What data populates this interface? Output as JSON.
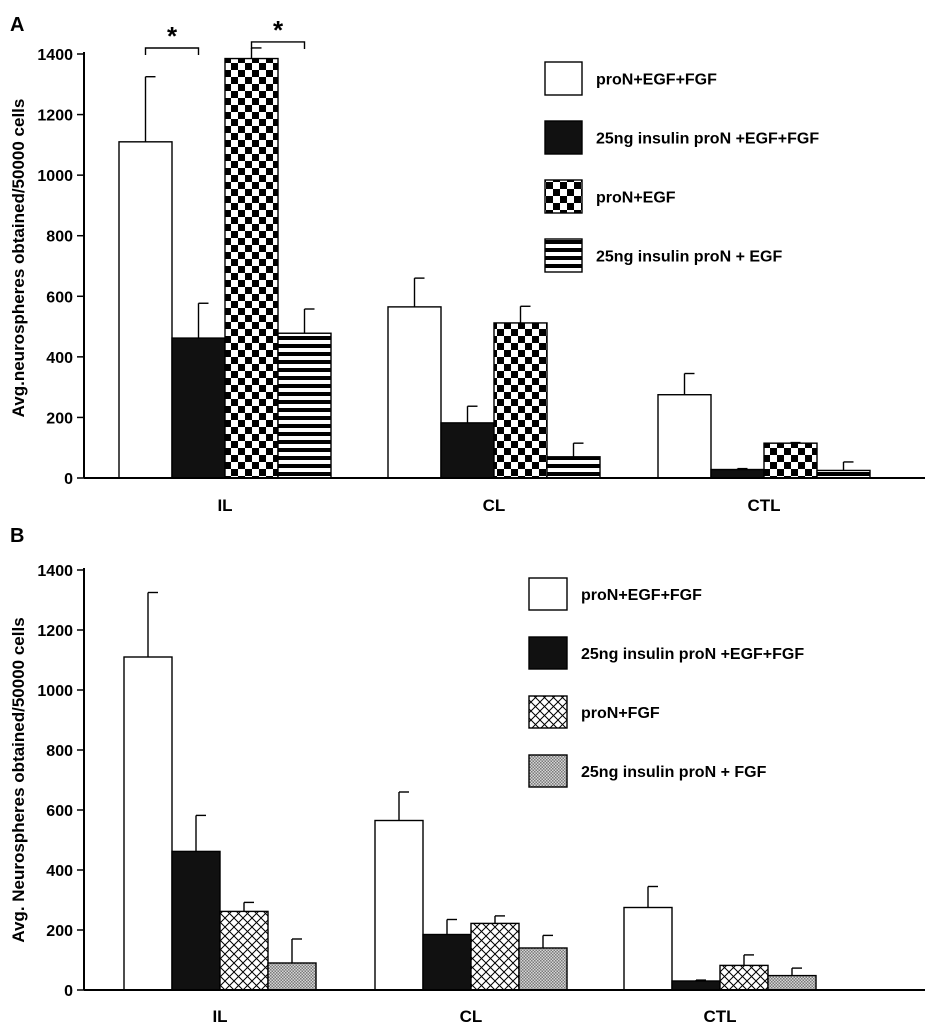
{
  "chart_data": [
    {
      "type": "bar",
      "panel_label": "A",
      "ylabel": "Avg.neurospheres obtained/50000 cells",
      "xlabel": "",
      "ylim": [
        0,
        1400
      ],
      "yticks": [
        "0",
        "200",
        "400",
        "600",
        "800",
        "1000",
        "1200",
        "1400"
      ],
      "categories": [
        "IL",
        "CL",
        "CTL"
      ],
      "series": [
        {
          "name": "proN+EGF+FGF",
          "pattern": "white",
          "values": [
            1110,
            565,
            275
          ],
          "errors": [
            215,
            95,
            70
          ]
        },
        {
          "name": "25ng insulin proN +EGF+FGF",
          "pattern": "black",
          "values": [
            462,
            182,
            28
          ],
          "errors": [
            115,
            55,
            3
          ]
        },
        {
          "name": "proN+EGF",
          "pattern": "checker",
          "values": [
            1385,
            512,
            115
          ],
          "errors": [
            35,
            55,
            2
          ]
        },
        {
          "name": "25ng insulin proN + EGF",
          "pattern": "hstripes",
          "values": [
            478,
            70,
            25
          ],
          "errors": [
            80,
            45,
            28
          ]
        }
      ],
      "annotations": [
        {
          "text": "*",
          "from_series": 0,
          "to_series": 1,
          "category": "IL"
        },
        {
          "text": "*",
          "from_series": 2,
          "to_series": 3,
          "category": "IL"
        }
      ],
      "legend_position": "top-right"
    },
    {
      "type": "bar",
      "panel_label": "B",
      "ylabel": "Avg. Neurospheres obtained/50000 cells",
      "xlabel": "",
      "ylim": [
        0,
        1400
      ],
      "yticks": [
        "0",
        "200",
        "400",
        "600",
        "800",
        "1000",
        "1200",
        "1400"
      ],
      "categories": [
        "IL",
        "CL",
        "CTL"
      ],
      "series": [
        {
          "name": "proN+EGF+FGF",
          "pattern": "white",
          "values": [
            1110,
            565,
            275
          ],
          "errors": [
            215,
            95,
            70
          ]
        },
        {
          "name": "25ng insulin proN +EGF+FGF",
          "pattern": "black",
          "values": [
            462,
            185,
            30
          ],
          "errors": [
            120,
            50,
            3
          ]
        },
        {
          "name": "proN+FGF",
          "pattern": "crosshatch",
          "values": [
            262,
            222,
            82
          ],
          "errors": [
            30,
            25,
            35
          ]
        },
        {
          "name": "25ng insulin proN + FGF",
          "pattern": "dots",
          "values": [
            90,
            140,
            48
          ],
          "errors": [
            80,
            42,
            25
          ]
        }
      ],
      "annotations": [],
      "legend_position": "top-right"
    }
  ]
}
